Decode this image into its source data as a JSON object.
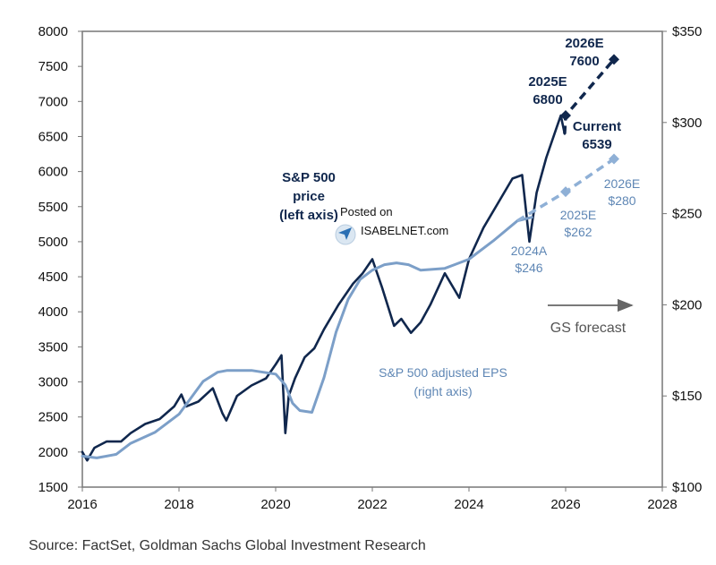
{
  "chart_data": {
    "type": "line",
    "xlim": [
      2016,
      2028
    ],
    "x_ticks": [
      "2016",
      "2018",
      "2020",
      "2022",
      "2024",
      "2026",
      "2028"
    ],
    "left_axis": {
      "ylim": [
        1500,
        8000
      ],
      "ticks": [
        "1500",
        "2000",
        "2500",
        "3000",
        "3500",
        "4000",
        "4500",
        "5000",
        "5500",
        "6000",
        "6500",
        "7000",
        "7500",
        "8000"
      ]
    },
    "right_axis": {
      "ylim": [
        100,
        350
      ],
      "ticks": [
        "$100",
        "$150",
        "$200",
        "$250",
        "$300",
        "$350"
      ]
    },
    "grid": false,
    "colors": {
      "price": "#10274d",
      "eps": "#7c9fc8",
      "eps_forecast": "#8fb0d6",
      "arrow": "#666666",
      "frame": "#777777"
    },
    "series": [
      {
        "name": "S&P 500 price (left axis)",
        "axis": "left",
        "x": [
          2016.0,
          2016.1,
          2016.25,
          2016.5,
          2016.8,
          2017.0,
          2017.3,
          2017.6,
          2017.9,
          2018.05,
          2018.15,
          2018.4,
          2018.7,
          2018.9,
          2018.98,
          2019.2,
          2019.5,
          2019.8,
          2020.0,
          2020.12,
          2020.2,
          2020.27,
          2020.4,
          2020.6,
          2020.8,
          2021.0,
          2021.3,
          2021.6,
          2021.8,
          2022.0,
          2022.2,
          2022.45,
          2022.6,
          2022.8,
          2023.0,
          2023.2,
          2023.5,
          2023.8,
          2024.0,
          2024.3,
          2024.6,
          2024.9,
          2025.1,
          2025.25,
          2025.4,
          2025.6,
          2025.8,
          2025.9,
          2025.98
        ],
        "values": [
          2000,
          1880,
          2060,
          2150,
          2150,
          2270,
          2400,
          2470,
          2650,
          2820,
          2650,
          2720,
          2910,
          2550,
          2450,
          2800,
          2950,
          3050,
          3250,
          3380,
          2270,
          2800,
          3050,
          3350,
          3480,
          3750,
          4100,
          4400,
          4550,
          4750,
          4350,
          3800,
          3900,
          3700,
          3850,
          4100,
          4550,
          4200,
          4750,
          5200,
          5550,
          5900,
          5950,
          5000,
          5700,
          6200,
          6600,
          6800,
          6539
        ]
      },
      {
        "name": "S&P 500 adjusted EPS (right axis)",
        "axis": "right",
        "x": [
          2016.0,
          2016.3,
          2016.7,
          2017.0,
          2017.5,
          2018.0,
          2018.5,
          2018.8,
          2019.0,
          2019.5,
          2020.0,
          2020.2,
          2020.35,
          2020.5,
          2020.75,
          2021.0,
          2021.25,
          2021.5,
          2021.75,
          2022.0,
          2022.25,
          2022.5,
          2022.75,
          2023.0,
          2023.5,
          2024.0,
          2024.5,
          2025.0,
          2025.3
        ],
        "values": [
          117,
          116,
          118,
          124,
          130,
          140,
          158,
          163,
          164,
          164,
          162,
          156,
          146,
          142,
          141,
          160,
          185,
          203,
          214,
          219,
          222,
          223,
          222,
          219,
          220,
          225,
          235,
          246,
          248
        ]
      },
      {
        "name": "GS forecast price",
        "axis": "left",
        "forecast": true,
        "x": [
          2025.98,
          2026.0,
          2027.0
        ],
        "values": [
          6539,
          6800,
          7600
        ]
      },
      {
        "name": "GS forecast EPS",
        "axis": "right",
        "forecast": true,
        "x": [
          2025.0,
          2026.0,
          2027.0
        ],
        "values": [
          246,
          262,
          280
        ]
      }
    ],
    "annotations": {
      "price_label": [
        "S&P 500",
        "price",
        "(left axis)"
      ],
      "eps_label": [
        "S&P 500 adjusted EPS",
        "(right axis)"
      ],
      "current": [
        "Current",
        "6539"
      ],
      "e2025_price": [
        "2025E",
        "6800"
      ],
      "e2026_price": [
        "2026E",
        "7600"
      ],
      "a2024_eps": [
        "2024A",
        "$246"
      ],
      "e2025_eps": [
        "2025E",
        "$262"
      ],
      "e2026_eps": [
        "2026E",
        "$280"
      ],
      "forecast_label": "GS forecast"
    },
    "watermark": [
      "Posted on",
      "ISABELNET.com"
    ],
    "source": "Source: FactSet, Goldman Sachs Global Investment Research"
  }
}
